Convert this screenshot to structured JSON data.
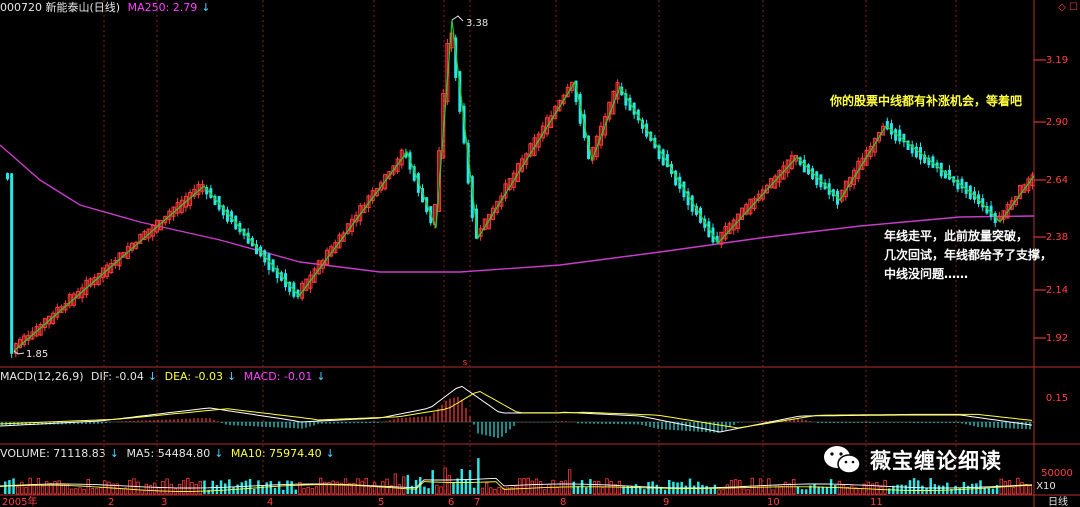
{
  "header": {
    "code_name": "000720 新能泰山(日线)",
    "ma250_label": "MA250: 2.79",
    "arrow": "↓"
  },
  "macd_header": {
    "name": "MACD(12,26,9)",
    "dif": "DIF: -0.04",
    "dea": "DEA: -0.03",
    "macd": "MACD: -0.01"
  },
  "volume_header": {
    "volume": "VOLUME: 71118.83",
    "ma5": "MA5: 54484.80",
    "ma10": "MA10: 75974.40"
  },
  "price_axis": [
    "3.19",
    "2.90",
    "2.64",
    "2.38",
    "2.14",
    "1.92"
  ],
  "macd_axis": [
    "0.15"
  ],
  "volume_axis": [
    "50000",
    "X10"
  ],
  "peak_label": "3.38",
  "low_label": "1.85",
  "s_marker": "s",
  "x_axis": {
    "start": "2005年",
    "months": [
      "2",
      "3",
      "4",
      "5",
      "6",
      "7",
      "8",
      "9",
      "10",
      "11"
    ],
    "period": "日线"
  },
  "annotations": {
    "top": "你的股票中线都有补涨机会，等着吧",
    "bottom": [
      "年线走平，此前放量突破，",
      "几次回试，年线都给予了支撑，",
      "中线没问题……"
    ]
  },
  "watermark": {
    "text": "薇宝缠论细读",
    "icon": "wechat-icon"
  },
  "colors": {
    "up": "#ff3c3c",
    "down": "#28e6e6",
    "ma250": "#c83cc8",
    "zigzag": "#2fc82f",
    "dif": "#ffffff",
    "dea": "#ffff3c"
  },
  "chart_data": {
    "type": "candlestick",
    "price_range": [
      1.78,
      3.5
    ],
    "ma250_level": 2.79,
    "zigzag_pivots": [
      {
        "label": "low",
        "price": 1.85
      },
      {
        "label": "high",
        "price": 2.64
      },
      {
        "label": "low",
        "price": 2.14
      },
      {
        "label": "high",
        "price": 2.75
      },
      {
        "label": "low",
        "price": 2.4
      },
      {
        "label": "high",
        "price": 3.38
      },
      {
        "label": "low",
        "price": 2.38
      }
    ]
  }
}
